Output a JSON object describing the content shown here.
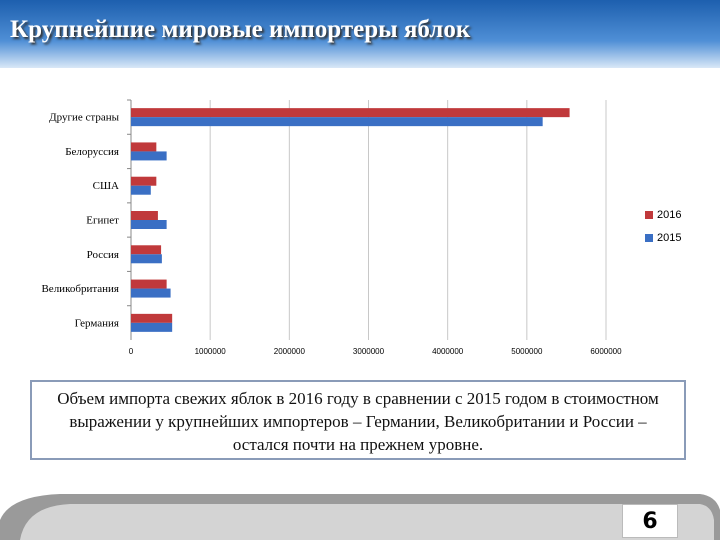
{
  "chart_data": {
    "type": "bar",
    "orientation": "horizontal",
    "title": "Крупнейшие мировые импортеры яблок",
    "categories": [
      "Другие страны",
      "Белоруссия",
      "США",
      "Египет",
      "Россия",
      "Великобритания",
      "Германия"
    ],
    "series": [
      {
        "name": "2016",
        "color": "#c0393b",
        "values": [
          5540000,
          320000,
          320000,
          340000,
          380000,
          450000,
          520000
        ]
      },
      {
        "name": "2015",
        "color": "#3a6fc4",
        "values": [
          5200000,
          450000,
          250000,
          450000,
          390000,
          500000,
          520000
        ]
      }
    ],
    "xlim": [
      0,
      6000000
    ],
    "xticks": [
      0,
      1000000,
      2000000,
      3000000,
      4000000,
      5000000,
      6000000
    ],
    "grid": true,
    "legend": "right"
  },
  "caption": "Объем импорта свежих яблок в 2016 году в сравнении с 2015 годом в стоимостном выражении у крупнейших импортеров – Германии, Великобритании и России – остался почти на прежнем уровне.",
  "page_number": "6"
}
